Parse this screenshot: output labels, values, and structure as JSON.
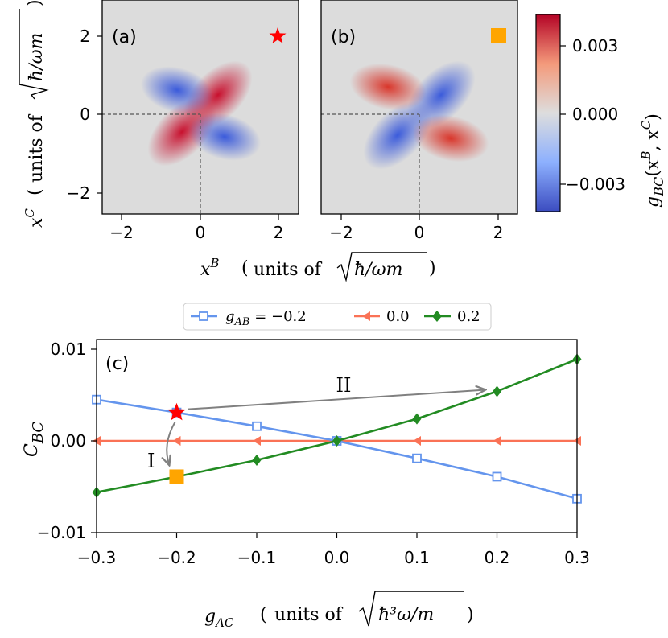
{
  "colors": {
    "neg": "#3b4cc0",
    "mid": "#dddddd",
    "pos": "#b40426",
    "series_neg": "#6495ed",
    "series_zero": "#fa7256",
    "series_pos": "#228b22",
    "star": "#ff0000",
    "square": "#ffa500",
    "arrow": "#808080"
  },
  "top": {
    "xlabel": "x^B (units of √(ħ/ωm))",
    "ylabel": "x^C (units of √(ħ/ωm))",
    "xlabel_var": "x",
    "xlabel_sup": "B",
    "xlabel_units": "units of ",
    "xlabel_root": "ħ/ωm",
    "ylabel_var": "x",
    "ylabel_sup": "C",
    "ylabel_units": "units of ",
    "ylabel_root": "ħ/ωm",
    "colorbar_label": "g_BC(x^B, x^C)",
    "colorbar_label_main": "g",
    "colorbar_label_sub": "BC",
    "colorbar_label_args": "(x",
    "colorbar_label_sup1": "B",
    "colorbar_label_mid": ", x",
    "colorbar_label_sup2": "C",
    "colorbar_label_end": ")",
    "colorbar_ticks": [
      "0.003",
      "0.000",
      "−0.003"
    ],
    "panels": [
      {
        "label": "(a)",
        "marker": "star",
        "pattern": "positive-diagonal"
      },
      {
        "label": "(b)",
        "marker": "square",
        "pattern": "negative-diagonal"
      }
    ],
    "xticks": [
      "−2",
      "0",
      "2"
    ],
    "yticks": [
      "2",
      "0",
      "−2"
    ]
  },
  "chart_data": [
    {
      "type": "heatmap",
      "panel": "(a)",
      "x_range": [
        -2.5,
        2.5
      ],
      "y_range": [
        -2.5,
        2.5
      ],
      "color_range": [
        -0.004,
        0.004
      ],
      "colormap": "coolwarm",
      "marker": {
        "shape": "star",
        "x": 2,
        "y": 2
      },
      "reference_lines": {
        "x": 0,
        "y": 0
      }
    },
    {
      "type": "heatmap",
      "panel": "(b)",
      "x_range": [
        -2.5,
        2.5
      ],
      "y_range": [
        -2.5,
        2.5
      ],
      "color_range": [
        -0.004,
        0.004
      ],
      "colormap": "coolwarm",
      "marker": {
        "shape": "square",
        "x": 2,
        "y": 2
      },
      "reference_lines": {
        "x": 0,
        "y": 0
      }
    },
    {
      "type": "line",
      "panel": "(c)",
      "x": [
        -0.3,
        -0.2,
        -0.1,
        0.0,
        0.1,
        0.2,
        0.3
      ],
      "xlim": [
        -0.3,
        0.3
      ],
      "ylim": [
        -0.01,
        0.011
      ],
      "xticks": [
        "−0.3",
        "−0.2",
        "−0.1",
        "0.0",
        "0.1",
        "0.2",
        "0.3"
      ],
      "yticks": [
        "0.01",
        "0.00",
        "−0.01"
      ],
      "ylabel": "C_BC",
      "ylabel_main": "C",
      "ylabel_sub": "BC",
      "xlabel": "g_AC (units of √(ħ³ω/m))",
      "xlabel_main": "g",
      "xlabel_sub": "AC",
      "xlabel_units": "units of ",
      "xlabel_root": "ħ³ω/m",
      "legend_position": "top-center",
      "series": [
        {
          "name": "g_AB = −0.2",
          "legend_main": "g",
          "legend_sub": "AB",
          "legend_rest": " = −0.2",
          "marker": "square",
          "values": [
            0.0045,
            0.0031,
            0.0016,
            0.0,
            -0.0019,
            -0.0039,
            -0.0063
          ]
        },
        {
          "name": "0.0",
          "legend_rest": "0.0",
          "marker": "triangle-left",
          "values": [
            0.0,
            0.0,
            0.0,
            0.0,
            0.0,
            0.0,
            0.0
          ]
        },
        {
          "name": "0.2",
          "legend_rest": "0.2",
          "marker": "diamond",
          "values": [
            -0.0056,
            -0.0039,
            -0.0021,
            0.0,
            0.0024,
            0.0054,
            0.0089
          ]
        }
      ],
      "annotations": [
        {
          "text": "I",
          "from": [
            -0.2,
            0.0031
          ],
          "to": [
            -0.2,
            -0.0039
          ]
        },
        {
          "text": "II",
          "from": [
            -0.2,
            0.0031
          ],
          "to": [
            0.2,
            0.0054
          ]
        }
      ],
      "highlight_points": [
        {
          "shape": "star",
          "x": -0.2,
          "y": 0.0031
        },
        {
          "shape": "square",
          "x": -0.2,
          "y": -0.0039
        }
      ]
    }
  ],
  "panel_c_label": "(c)"
}
